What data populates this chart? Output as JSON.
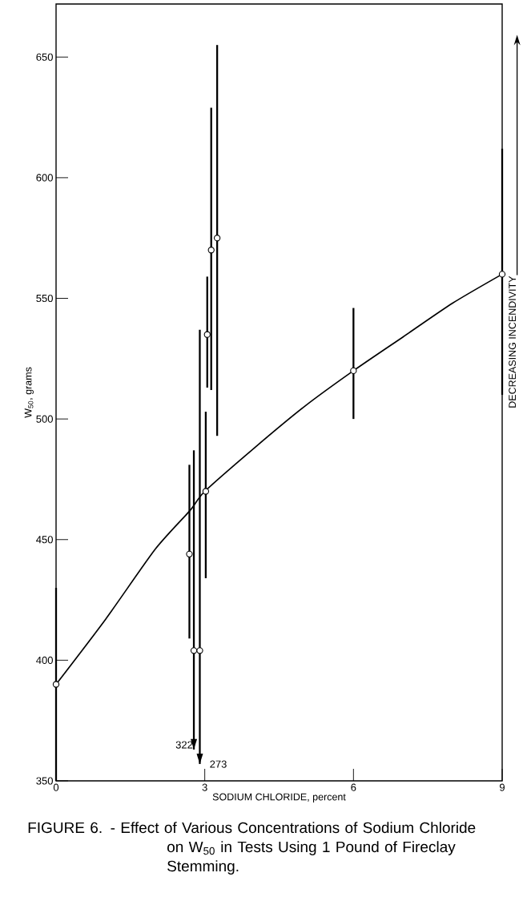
{
  "chart_data": {
    "type": "scatter",
    "title": "FIGURE 6. - Effect of Various Concentrations of Sodium Chloride on W$_{50}$ in Tests Using 1 Pound of Fireclay Stemming.",
    "xlabel": "SODIUM CHLORIDE, percent",
    "ylabel": "W$_{50}$, grams",
    "xlim": [
      0,
      9
    ],
    "ylim": [
      350,
      672
    ],
    "xticks": [
      0,
      3,
      6,
      9
    ],
    "yticks": [
      350,
      400,
      450,
      500,
      550,
      600,
      650
    ],
    "series": [
      {
        "color": "#000000",
        "marker": "circle",
        "x": [
          0,
          2.69,
          2.78,
          2.9,
          3.02,
          3.05,
          3.13,
          3.25,
          6,
          9
        ],
        "values": [
          390,
          444,
          404,
          404,
          470,
          535,
          570,
          575,
          520,
          560
        ],
        "errors": [
          [
            350,
            430
          ],
          [
            409,
            481
          ],
          [
            363,
            487
          ],
          [
            357,
            537
          ],
          [
            434,
            503
          ],
          [
            513,
            559
          ],
          [
            512,
            629
          ],
          [
            493,
            655
          ],
          [
            500,
            546
          ],
          [
            510,
            612
          ]
        ]
      },
      {
        "type": "line",
        "color": "#000000",
        "marker": "none",
        "line_style": "solid",
        "x": [
          0,
          1,
          2,
          2.7,
          3,
          4,
          5,
          6,
          7,
          8,
          9
        ],
        "values": [
          390,
          417,
          446,
          462,
          470,
          488,
          505,
          520,
          534,
          548,
          560
        ]
      }
    ],
    "annotations": [
      {
        "text": "322",
        "x": 2.78,
        "y": 363
      },
      {
        "text": "273",
        "x": 2.9,
        "y": 357
      },
      "DECREASING INCENDIVITY"
    ]
  }
}
